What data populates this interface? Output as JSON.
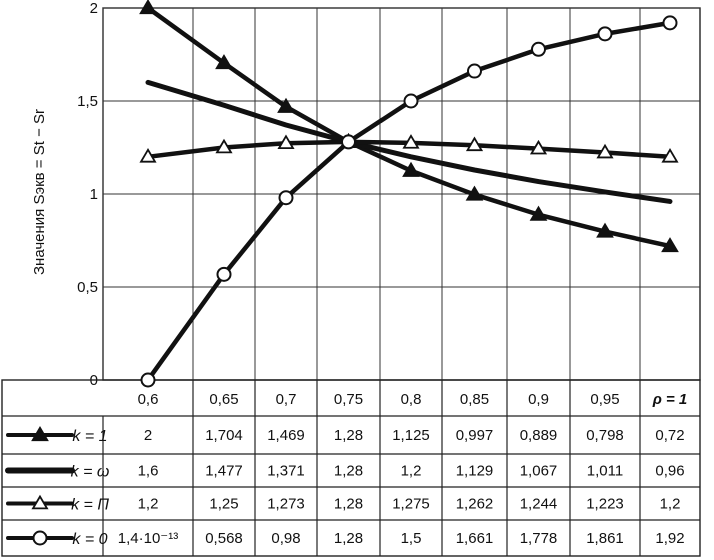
{
  "chart_data": {
    "type": "line",
    "ylabel": "Значения Sэкв = St − Sr",
    "x": [
      0.6,
      0.65,
      0.7,
      0.75,
      0.8,
      0.85,
      0.9,
      0.95,
      1.0
    ],
    "x_tick_labels": [
      "0,6",
      "0,65",
      "0,7",
      "0,75",
      "0,8",
      "0,85",
      "0,9",
      "0,95",
      "ρ = 1"
    ],
    "y_tick_labels": [
      "0",
      "0,5",
      "1",
      "1,5",
      "2"
    ],
    "ylim": [
      0,
      2
    ],
    "grid": true,
    "legend": "table-below",
    "series": [
      {
        "name": "k = 1",
        "marker": "filled-triangle",
        "values": [
          2,
          1.704,
          1.469,
          1.28,
          1.125,
          0.997,
          0.889,
          0.798,
          0.72
        ],
        "labels": [
          "2",
          "1,704",
          "1,469",
          "1,28",
          "1,125",
          "0,997",
          "0,889",
          "0,798",
          "0,72"
        ]
      },
      {
        "name": "k = ω",
        "marker": "none",
        "values": [
          1.6,
          1.477,
          1.371,
          1.28,
          1.2,
          1.129,
          1.067,
          1.011,
          0.96
        ],
        "labels": [
          "1,6",
          "1,477",
          "1,371",
          "1,28",
          "1,2",
          "1,129",
          "1,067",
          "1,011",
          "0,96"
        ]
      },
      {
        "name": "k = Π",
        "marker": "open-triangle",
        "values": [
          1.2,
          1.25,
          1.273,
          1.28,
          1.275,
          1.262,
          1.244,
          1.223,
          1.2
        ],
        "labels": [
          "1,2",
          "1,25",
          "1,273",
          "1,28",
          "1,275",
          "1,262",
          "1,244",
          "1,223",
          "1,2"
        ]
      },
      {
        "name": "k = 0",
        "marker": "open-circle",
        "values": [
          1.4e-13,
          0.568,
          0.98,
          1.28,
          1.5,
          1.661,
          1.778,
          1.861,
          1.92
        ],
        "labels": [
          "1,4·10⁻¹³",
          "0,568",
          "0,98",
          "1,28",
          "1,5",
          "1,661",
          "1,778",
          "1,861",
          "1,92"
        ]
      }
    ]
  }
}
